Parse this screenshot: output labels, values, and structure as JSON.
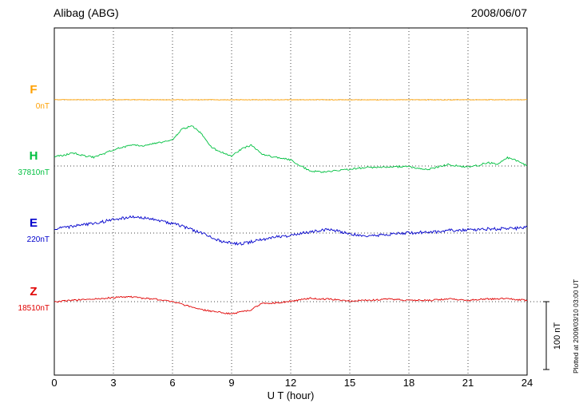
{
  "chart_data": {
    "type": "line",
    "title": "Alibag (ABG)",
    "date": "2008/06/07",
    "xlabel": "U T (hour)",
    "xlim": [
      0,
      24
    ],
    "x_tick_step": 3,
    "x_ticks": [
      "0",
      "3",
      "6",
      "9",
      "12",
      "15",
      "18",
      "21",
      "24"
    ],
    "grid": "dotted-vertical-every-3h",
    "legend_position": "left-of-axis",
    "scale_bar": {
      "label": "100 nT",
      "nT": 100
    },
    "footnote": "Plotted at 2009/03/10 03:00 UT",
    "sample_hours_step": 0.5,
    "series": [
      {
        "name": "F",
        "baseline_label": "0nT",
        "color": "#FFA000",
        "noise_nT": 0.4,
        "values_nT": [
          0,
          0,
          0,
          0,
          0,
          0,
          0,
          0,
          0,
          0,
          0,
          0,
          0,
          0,
          0,
          0,
          0,
          0,
          0,
          0,
          0,
          0,
          0,
          0,
          0,
          0,
          0,
          0,
          0,
          0,
          0,
          0,
          0,
          0,
          0,
          0,
          0,
          0,
          0,
          0,
          0,
          0,
          0,
          0,
          0,
          0,
          0,
          0,
          0
        ]
      },
      {
        "name": "H",
        "baseline_label": "37810nT",
        "color": "#00C040",
        "noise_nT": 1.3,
        "values_nT": [
          14,
          16,
          19,
          15,
          13,
          18,
          24,
          28,
          31,
          30,
          33,
          35,
          39,
          55,
          59,
          47,
          27,
          20,
          15,
          25,
          31,
          18,
          14,
          12,
          9,
          0,
          -7,
          -9,
          -8,
          -6,
          -5,
          -3,
          -2,
          -2,
          -2,
          -1,
          -1,
          -3,
          -5,
          -1,
          2,
          0,
          -2,
          1,
          5,
          3,
          12,
          8,
          0
        ]
      },
      {
        "name": "E",
        "baseline_label": "220nT",
        "color": "#0000CC",
        "noise_nT": 2.2,
        "values_nT": [
          7,
          8,
          10,
          12,
          14,
          17,
          20,
          22,
          24,
          23,
          20,
          17,
          14,
          10,
          5,
          0,
          -7,
          -12,
          -15,
          -16,
          -13,
          -10,
          -7,
          -5,
          -4,
          -1,
          2,
          4,
          5,
          2,
          -1,
          -3,
          -4,
          -3,
          -2,
          -1,
          0,
          1,
          1,
          2,
          4,
          4,
          5,
          5,
          6,
          6,
          7,
          7,
          8
        ]
      },
      {
        "name": "Z",
        "baseline_label": "18510nT",
        "color": "#E00000",
        "noise_nT": 1.2,
        "values_nT": [
          0,
          1,
          2,
          3,
          4,
          5,
          6,
          7,
          7,
          5,
          4,
          2,
          0,
          -4,
          -8,
          -12,
          -14,
          -16,
          -18,
          -15,
          -12,
          -3,
          -2,
          -1,
          1,
          3,
          5,
          4,
          4,
          2,
          1,
          2,
          2,
          3,
          4,
          3,
          2,
          2,
          2,
          3,
          4,
          3,
          2,
          3,
          4,
          4,
          5,
          3,
          2
        ]
      }
    ]
  }
}
